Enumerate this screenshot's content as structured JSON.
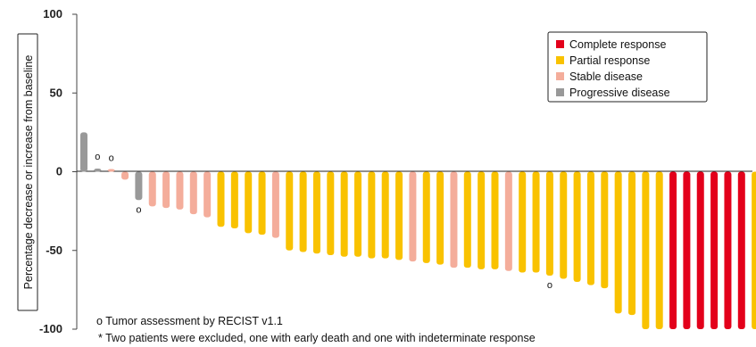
{
  "chart_data": {
    "type": "bar",
    "subtype": "waterfall",
    "ylabel": "Percentage decrease or increase from baseline",
    "ylim": [
      -100,
      100
    ],
    "yticks": [
      100,
      50,
      0,
      -50,
      -100
    ],
    "grid": false,
    "legend_placement": "top-right",
    "legend": [
      {
        "label": "Complete response",
        "color": "#e3001b"
      },
      {
        "label": "Partial response",
        "color": "#f9c200"
      },
      {
        "label": "Stable disease",
        "color": "#f4ad9b"
      },
      {
        "label": "Progressive disease",
        "color": "#999999"
      }
    ],
    "bars": [
      {
        "value": 25,
        "category": "Progressive disease"
      },
      {
        "value": 2,
        "category": "Progressive disease",
        "marker": "o"
      },
      {
        "value": 1,
        "category": "Stable disease",
        "marker": "o"
      },
      {
        "value": -5,
        "category": "Stable disease"
      },
      {
        "value": -18,
        "category": "Progressive disease",
        "marker": "o"
      },
      {
        "value": -22,
        "category": "Stable disease"
      },
      {
        "value": -23,
        "category": "Stable disease"
      },
      {
        "value": -24,
        "category": "Stable disease"
      },
      {
        "value": -27,
        "category": "Stable disease"
      },
      {
        "value": -29,
        "category": "Stable disease"
      },
      {
        "value": -35,
        "category": "Partial response"
      },
      {
        "value": -36,
        "category": "Partial response"
      },
      {
        "value": -39,
        "category": "Partial response"
      },
      {
        "value": -40,
        "category": "Partial response"
      },
      {
        "value": -42,
        "category": "Stable disease"
      },
      {
        "value": -50,
        "category": "Partial response"
      },
      {
        "value": -51,
        "category": "Partial response"
      },
      {
        "value": -52,
        "category": "Partial response"
      },
      {
        "value": -53,
        "category": "Partial response"
      },
      {
        "value": -54,
        "category": "Partial response"
      },
      {
        "value": -54,
        "category": "Partial response"
      },
      {
        "value": -55,
        "category": "Partial response"
      },
      {
        "value": -55,
        "category": "Partial response"
      },
      {
        "value": -56,
        "category": "Partial response"
      },
      {
        "value": -57,
        "category": "Stable disease"
      },
      {
        "value": -58,
        "category": "Partial response"
      },
      {
        "value": -59,
        "category": "Partial response"
      },
      {
        "value": -61,
        "category": "Stable disease"
      },
      {
        "value": -61,
        "category": "Partial response"
      },
      {
        "value": -62,
        "category": "Partial response"
      },
      {
        "value": -62,
        "category": "Partial response"
      },
      {
        "value": -63,
        "category": "Stable disease"
      },
      {
        "value": -64,
        "category": "Partial response"
      },
      {
        "value": -64,
        "category": "Partial response"
      },
      {
        "value": -66,
        "category": "Partial response",
        "marker": "o"
      },
      {
        "value": -68,
        "category": "Partial response"
      },
      {
        "value": -70,
        "category": "Partial response"
      },
      {
        "value": -72,
        "category": "Partial response"
      },
      {
        "value": -74,
        "category": "Partial response"
      },
      {
        "value": -90,
        "category": "Partial response"
      },
      {
        "value": -91,
        "category": "Partial response"
      },
      {
        "value": -100,
        "category": "Partial response"
      },
      {
        "value": -100,
        "category": "Partial response"
      },
      {
        "value": -100,
        "category": "Complete response"
      },
      {
        "value": -100,
        "category": "Complete response"
      },
      {
        "value": -100,
        "category": "Complete response"
      },
      {
        "value": -100,
        "category": "Complete response"
      },
      {
        "value": -100,
        "category": "Complete response"
      },
      {
        "value": -100,
        "category": "Complete response"
      },
      {
        "value": -100,
        "category": "Partial response"
      }
    ],
    "footnotes": [
      "o Tumor assessment by RECIST v1.1",
      "*  Two patients were excluded, one with early death and one with indeterminate response"
    ]
  }
}
